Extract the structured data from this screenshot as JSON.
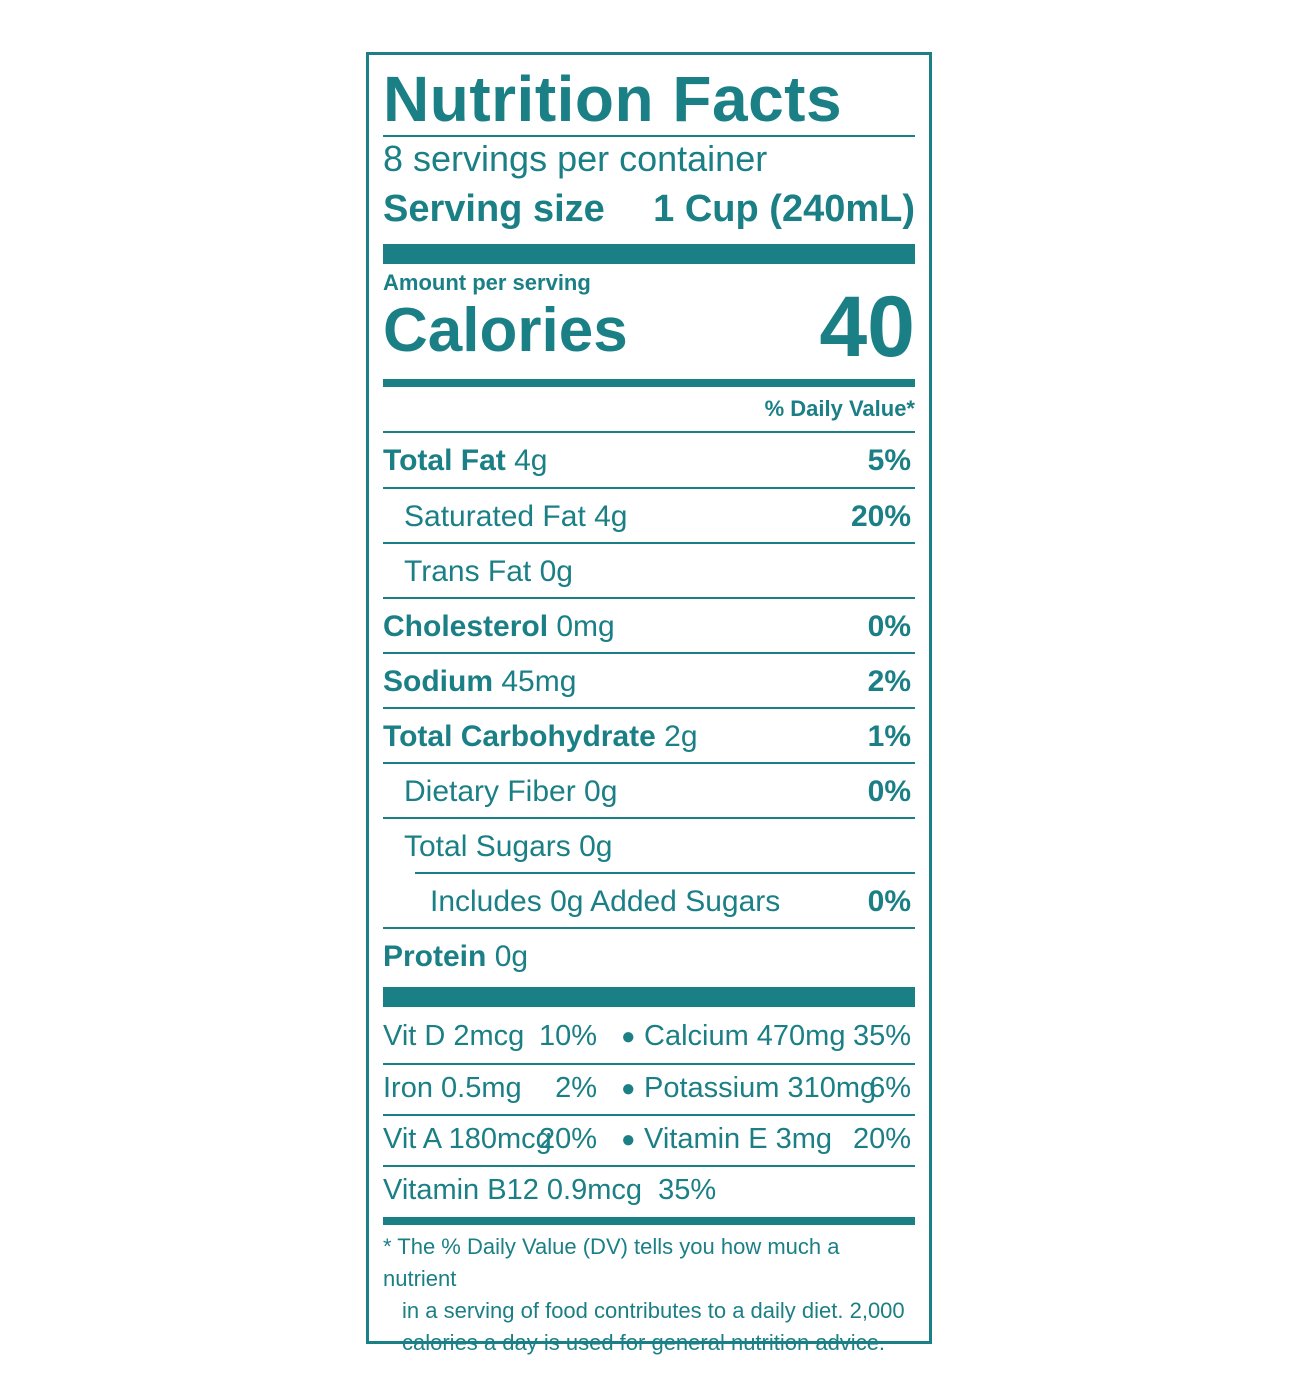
{
  "label": {
    "title": "Nutrition Facts",
    "servings_per_container": "8 servings per container",
    "serving_size_label": "Serving size",
    "serving_size_value": "1 Cup (240mL)",
    "amount_per_serving": "Amount per serving",
    "calories_label": "Calories",
    "calories_value": "40",
    "daily_value_header": "% Daily Value*",
    "nutrients": [
      {
        "name": "Total Fat",
        "amount": "4g",
        "dv": "5%"
      },
      {
        "name": "Saturated Fat 4g",
        "amount": "",
        "dv": "20%"
      },
      {
        "name": "Trans Fat 0g",
        "amount": "",
        "dv": ""
      },
      {
        "name": "Cholesterol",
        "amount": "0mg",
        "dv": "0%"
      },
      {
        "name": "Sodium",
        "amount": "45mg",
        "dv": "2%"
      },
      {
        "name": "Total Carbohydrate",
        "amount": "2g",
        "dv": "1%"
      },
      {
        "name": "Dietary Fiber 0g",
        "amount": "",
        "dv": "0%"
      },
      {
        "name": "Total Sugars 0g",
        "amount": "",
        "dv": ""
      },
      {
        "name": "Includes 0g Added Sugars",
        "amount": "",
        "dv": "0%"
      },
      {
        "name": "Protein",
        "amount": "0g",
        "dv": ""
      }
    ],
    "vitamins": [
      {
        "left_name": "Vit D 2mcg",
        "left_dv": "10%",
        "bullet": "●",
        "right_name": "Calcium 470mg",
        "right_dv": "35%"
      },
      {
        "left_name": "Iron 0.5mg",
        "left_dv": "2%",
        "bullet": "●",
        "right_name": "Potassium 310mg",
        "right_dv": "6%"
      },
      {
        "left_name": "Vit A 180mcg",
        "left_dv": "20%",
        "bullet": "●",
        "right_name": "Vitamin E 3mg",
        "right_dv": "20%"
      }
    ],
    "vitamin_b12": "Vitamin B12 0.9mcg  35%",
    "footnote": {
      "line1": "* The % Daily Value (DV) tells you how much a nutrient",
      "line2": "in a serving of food contributes to a daily diet. 2,000",
      "line3": "calories a day is used for general nutrition advice."
    }
  }
}
